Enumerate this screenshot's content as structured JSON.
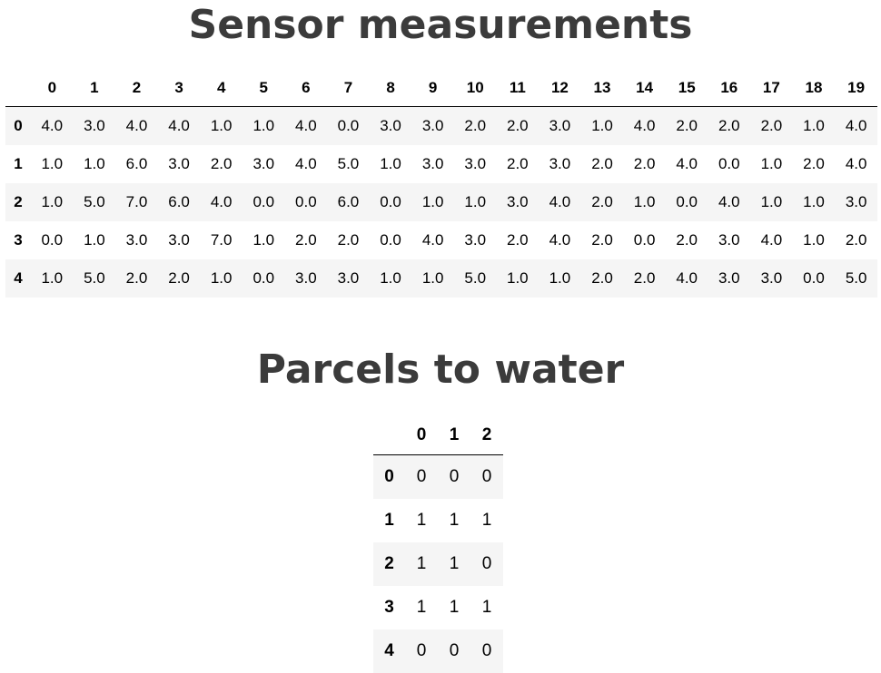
{
  "sensor": {
    "title": "Sensor measurements",
    "columns": [
      "0",
      "1",
      "2",
      "3",
      "4",
      "5",
      "6",
      "7",
      "8",
      "9",
      "10",
      "11",
      "12",
      "13",
      "14",
      "15",
      "16",
      "17",
      "18",
      "19"
    ],
    "rows": [
      {
        "index": "0",
        "values": [
          "4.0",
          "3.0",
          "4.0",
          "4.0",
          "1.0",
          "1.0",
          "4.0",
          "0.0",
          "3.0",
          "3.0",
          "2.0",
          "2.0",
          "3.0",
          "1.0",
          "4.0",
          "2.0",
          "2.0",
          "2.0",
          "1.0",
          "4.0"
        ]
      },
      {
        "index": "1",
        "values": [
          "1.0",
          "1.0",
          "6.0",
          "3.0",
          "2.0",
          "3.0",
          "4.0",
          "5.0",
          "1.0",
          "3.0",
          "3.0",
          "2.0",
          "3.0",
          "2.0",
          "2.0",
          "4.0",
          "0.0",
          "1.0",
          "2.0",
          "4.0"
        ]
      },
      {
        "index": "2",
        "values": [
          "1.0",
          "5.0",
          "7.0",
          "6.0",
          "4.0",
          "0.0",
          "0.0",
          "6.0",
          "0.0",
          "1.0",
          "1.0",
          "3.0",
          "4.0",
          "2.0",
          "1.0",
          "0.0",
          "4.0",
          "1.0",
          "1.0",
          "3.0"
        ]
      },
      {
        "index": "3",
        "values": [
          "0.0",
          "1.0",
          "3.0",
          "3.0",
          "7.0",
          "1.0",
          "2.0",
          "2.0",
          "0.0",
          "4.0",
          "3.0",
          "2.0",
          "4.0",
          "2.0",
          "0.0",
          "2.0",
          "3.0",
          "4.0",
          "1.0",
          "2.0"
        ]
      },
      {
        "index": "4",
        "values": [
          "1.0",
          "5.0",
          "2.0",
          "2.0",
          "1.0",
          "0.0",
          "3.0",
          "3.0",
          "1.0",
          "1.0",
          "5.0",
          "1.0",
          "1.0",
          "2.0",
          "2.0",
          "4.0",
          "3.0",
          "3.0",
          "0.0",
          "5.0"
        ]
      }
    ]
  },
  "parcels": {
    "title": "Parcels to water",
    "columns": [
      "0",
      "1",
      "2"
    ],
    "rows": [
      {
        "index": "0",
        "values": [
          "0",
          "0",
          "0"
        ]
      },
      {
        "index": "1",
        "values": [
          "1",
          "1",
          "1"
        ]
      },
      {
        "index": "2",
        "values": [
          "1",
          "1",
          "0"
        ]
      },
      {
        "index": "3",
        "values": [
          "1",
          "1",
          "1"
        ]
      },
      {
        "index": "4",
        "values": [
          "0",
          "0",
          "0"
        ]
      }
    ]
  },
  "colors": {
    "title_text": "#3b3b3b",
    "stripe_row": "#f5f5f5",
    "header_rule": "#000000"
  }
}
